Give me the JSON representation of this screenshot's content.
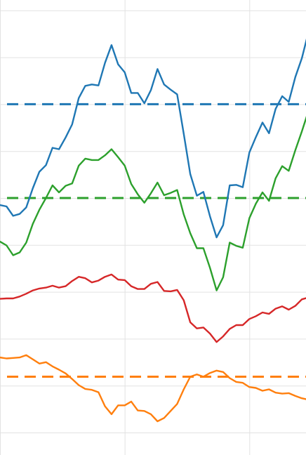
{
  "chart_data": {
    "type": "line",
    "title": "",
    "xlabel": "",
    "ylabel": "",
    "grid": true,
    "legend": "none",
    "x_grid": [
      0,
      19,
      38
    ],
    "y_grid": [
      0,
      1,
      2,
      3,
      4,
      5,
      6,
      7,
      8,
      9
    ],
    "xlim": [
      0,
      46.5
    ],
    "ylim": [
      0,
      9.6
    ],
    "series": [
      {
        "color": "#1f77b4",
        "values": [
          4.85,
          4.82,
          4.62,
          4.66,
          4.8,
          5.21,
          5.56,
          5.7,
          6.07,
          6.04,
          6.29,
          6.57,
          7.13,
          7.39,
          7.42,
          7.4,
          7.88,
          8.26,
          7.85,
          7.68,
          7.24,
          7.24,
          7.02,
          7.3,
          7.75,
          7.42,
          7.31,
          7.21,
          6.37,
          5.51,
          5.05,
          5.13,
          4.61,
          4.16,
          4.42,
          5.27,
          5.28,
          5.23,
          5.97,
          6.3,
          6.61,
          6.38,
          6.9,
          7.17,
          7.05,
          7.58,
          7.98,
          8.53
        ]
      },
      {
        "color": "#2ca02c",
        "values": [
          4.07,
          3.99,
          3.78,
          3.84,
          4.05,
          4.45,
          4.75,
          5.0,
          5.27,
          5.12,
          5.26,
          5.31,
          5.69,
          5.84,
          5.81,
          5.81,
          5.91,
          6.04,
          5.87,
          5.69,
          5.3,
          5.08,
          4.9,
          5.1,
          5.33,
          5.06,
          5.11,
          5.17,
          4.65,
          4.25,
          3.93,
          3.93,
          3.51,
          3.03,
          3.31,
          4.05,
          3.98,
          3.94,
          4.57,
          4.88,
          5.12,
          4.94,
          5.42,
          5.68,
          5.58,
          6.02,
          6.42,
          6.85
        ]
      },
      {
        "color": "#d62728",
        "values": [
          2.85,
          2.86,
          2.86,
          2.9,
          2.96,
          3.03,
          3.07,
          3.09,
          3.13,
          3.09,
          3.12,
          3.23,
          3.32,
          3.29,
          3.2,
          3.24,
          3.32,
          3.37,
          3.26,
          3.25,
          3.12,
          3.06,
          3.06,
          3.17,
          3.21,
          3.02,
          3.01,
          3.04,
          2.82,
          2.35,
          2.22,
          2.24,
          2.11,
          1.93,
          2.05,
          2.21,
          2.29,
          2.29,
          2.42,
          2.48,
          2.56,
          2.53,
          2.64,
          2.69,
          2.62,
          2.7,
          2.84,
          2.88
        ]
      },
      {
        "color": "#ff7f0e",
        "values": [
          1.6,
          1.58,
          1.59,
          1.6,
          1.65,
          1.56,
          1.47,
          1.5,
          1.41,
          1.34,
          1.26,
          1.14,
          1.01,
          0.93,
          0.91,
          0.86,
          0.56,
          0.39,
          0.58,
          0.58,
          0.66,
          0.47,
          0.46,
          0.39,
          0.24,
          0.31,
          0.46,
          0.61,
          0.92,
          1.19,
          1.24,
          1.19,
          1.27,
          1.32,
          1.29,
          1.16,
          1.08,
          1.06,
          0.97,
          0.95,
          0.89,
          0.92,
          0.85,
          0.83,
          0.84,
          0.78,
          0.73,
          0.7
        ]
      }
    ],
    "reference_lines": [
      {
        "color": "#1f77b4",
        "y": 7.0,
        "style": "dashed"
      },
      {
        "color": "#2ca02c",
        "y": 5.0,
        "style": "dashed"
      },
      {
        "color": "#ff7f0e",
        "y": 1.19,
        "style": "dashed"
      }
    ]
  }
}
